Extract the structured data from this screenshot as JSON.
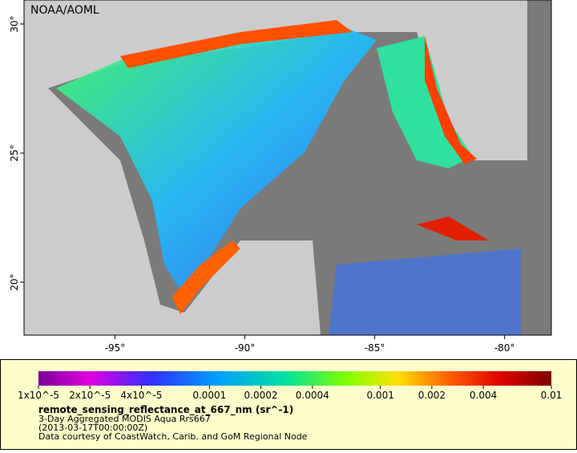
{
  "map": {
    "credit": "NOAA/AOML",
    "xlim": [
      -98.5,
      -78.2
    ],
    "ylim": [
      17.95,
      30.93
    ],
    "lat_ticks": [
      {
        "value": 30,
        "label": "30°"
      },
      {
        "value": 25,
        "label": "25°"
      },
      {
        "value": 20,
        "label": "20°"
      }
    ],
    "lon_ticks": [
      {
        "value": -95,
        "label": "-95°"
      },
      {
        "value": -90,
        "label": "-90°"
      },
      {
        "value": -85,
        "label": "-85°"
      },
      {
        "value": -80,
        "label": "-80°"
      }
    ]
  },
  "colorbar": {
    "scale": "log",
    "lim": [
      1e-05,
      0.01
    ],
    "ticks": [
      {
        "value": 1e-05,
        "label": "1x10^-5"
      },
      {
        "value": 2e-05,
        "label": "2x10^-5"
      },
      {
        "value": 4e-05,
        "label": "4x10^-5"
      },
      {
        "value": 0.0001,
        "label": "0.0001"
      },
      {
        "value": 0.0002,
        "label": "0.0002"
      },
      {
        "value": 0.0004,
        "label": "0.0004"
      },
      {
        "value": 0.001,
        "label": "0.001"
      },
      {
        "value": 0.002,
        "label": "0.002"
      },
      {
        "value": 0.004,
        "label": "0.004"
      },
      {
        "value": 0.01,
        "label": "0.01"
      }
    ]
  },
  "legend": {
    "variable": "remote_sensing_reflectance_at_667_nm (sr^-1)",
    "description": "3-Day Aggregated MODIS Aqua Rrs667",
    "time": "(2013-03-17T00:00:00Z)",
    "source": "Data courtesy of CoastWatch, Carib. and GoM Regional Node"
  }
}
